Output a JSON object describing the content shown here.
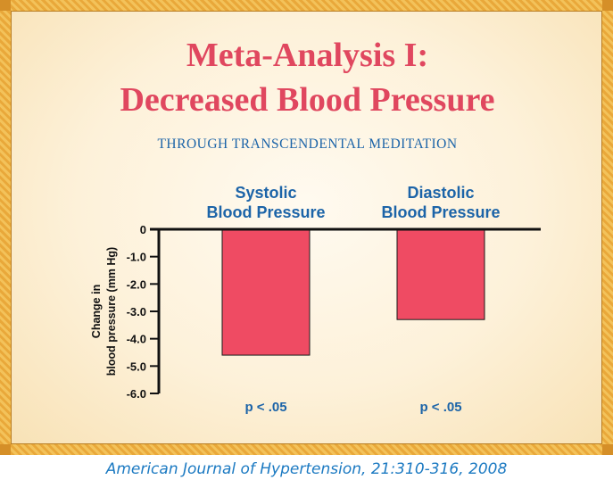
{
  "title_line1": "Meta-Analysis I:",
  "title_line2": "Decreased Blood Pressure",
  "subtitle": "THROUGH TRANSCENDENTAL MEDITATION",
  "citation": "American Journal of Hypertension, 21:310-316, 2008",
  "colors": {
    "title": "#e0475f",
    "label": "#1c64a8",
    "bar": "#ef4b63",
    "citation": "#1c7ac2"
  },
  "chart_data": {
    "type": "bar",
    "categories": [
      "Systolic\nBlood Pressure",
      "Diastolic\nBlood Pressure"
    ],
    "values": [
      -4.6,
      -3.3
    ],
    "annotations": [
      "p < .05",
      "p < .05"
    ],
    "ylabel_line1": "Change in",
    "ylabel_line2": "blood pressure (mm Hg)",
    "yticks": [
      "0",
      "-1.0",
      "-2.0",
      "-3.0",
      "-4.0",
      "-5.0",
      "-6.0"
    ],
    "ylim": [
      -6,
      0
    ],
    "grid": false
  }
}
